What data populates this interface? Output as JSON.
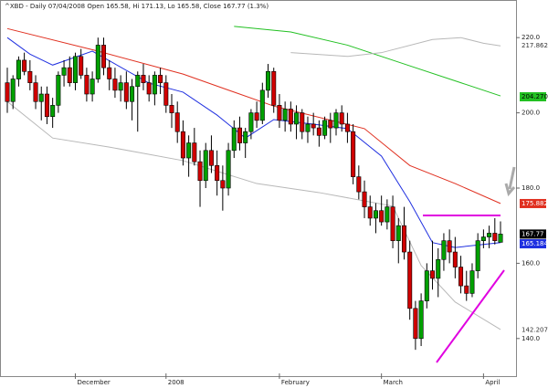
{
  "chart_data": {
    "type": "candlestick",
    "title": "^XBD - Daily 07/04/2008 Open 165.58, Hi 171.13, Lo 165.58, Close 167.77 (1.3%)",
    "ylim": [
      130,
      230
    ],
    "yticks": [
      {
        "value": 220,
        "label": "220.0"
      },
      {
        "value": 200,
        "label": "200.0"
      },
      {
        "value": 180,
        "label": "180.0"
      },
      {
        "value": 160,
        "label": "160.0"
      },
      {
        "value": 140,
        "label": "140.0"
      }
    ],
    "categories": [
      null,
      null,
      null,
      null,
      null,
      null,
      null,
      null,
      null,
      null,
      null,
      null,
      "December",
      null,
      null,
      null,
      null,
      null,
      null,
      null,
      null,
      null,
      null,
      null,
      null,
      null,
      null,
      null,
      "2008",
      null,
      null,
      null,
      null,
      null,
      null,
      null,
      null,
      null,
      null,
      null,
      null,
      null,
      null,
      null,
      null,
      null,
      null,
      null,
      "February",
      null,
      null,
      null,
      null,
      null,
      null,
      null,
      null,
      null,
      null,
      null,
      null,
      null,
      null,
      null,
      null,
      null,
      "March",
      null,
      null,
      null,
      null,
      null,
      null,
      null,
      null,
      null,
      null,
      null,
      null,
      null,
      null,
      null,
      null,
      null,
      "April",
      null,
      null,
      null
    ],
    "up_color": "#00a000",
    "down_color": "#d00000",
    "ohlc": [
      [
        208,
        212,
        200,
        203
      ],
      [
        203,
        210,
        201,
        209
      ],
      [
        209,
        215,
        207,
        214
      ],
      [
        214,
        216,
        210,
        211
      ],
      [
        211,
        214,
        206,
        208
      ],
      [
        208,
        210,
        201,
        203
      ],
      [
        203,
        207,
        198,
        205
      ],
      [
        205,
        207,
        197,
        199
      ],
      [
        199,
        204,
        196,
        202
      ],
      [
        202,
        211,
        200,
        210
      ],
      [
        210,
        214,
        207,
        212
      ],
      [
        212,
        215,
        207,
        208
      ],
      [
        208,
        216,
        206,
        215
      ],
      [
        215,
        217,
        209,
        210
      ],
      [
        210,
        212,
        203,
        205
      ],
      [
        205,
        211,
        203,
        209
      ],
      [
        209,
        220,
        208,
        218
      ],
      [
        218,
        220,
        210,
        212
      ],
      [
        212,
        214,
        206,
        209
      ],
      [
        209,
        212,
        204,
        206
      ],
      [
        206,
        210,
        203,
        208
      ],
      [
        208,
        211,
        201,
        203
      ],
      [
        203,
        209,
        198,
        207
      ],
      [
        207,
        211,
        195,
        210
      ],
      [
        210,
        213,
        206,
        208
      ],
      [
        208,
        210,
        203,
        205
      ],
      [
        205,
        211,
        202,
        210
      ],
      [
        210,
        212,
        205,
        208
      ],
      [
        208,
        210,
        200,
        202
      ],
      [
        202,
        205,
        196,
        200
      ],
      [
        200,
        203,
        192,
        195
      ],
      [
        195,
        198,
        186,
        188
      ],
      [
        188,
        194,
        183,
        192
      ],
      [
        192,
        196,
        186,
        187
      ],
      [
        187,
        190,
        175,
        182
      ],
      [
        182,
        192,
        180,
        190
      ],
      [
        190,
        194,
        184,
        186
      ],
      [
        186,
        190,
        178,
        182
      ],
      [
        182,
        186,
        174,
        180
      ],
      [
        180,
        192,
        178,
        190
      ],
      [
        190,
        198,
        188,
        196
      ],
      [
        196,
        199,
        190,
        192
      ],
      [
        192,
        196,
        188,
        195
      ],
      [
        195,
        201,
        193,
        200
      ],
      [
        200,
        203,
        196,
        198
      ],
      [
        198,
        208,
        197,
        206
      ],
      [
        206,
        213,
        204,
        211
      ],
      [
        211,
        212,
        200,
        202
      ],
      [
        202,
        205,
        196,
        198
      ],
      [
        198,
        203,
        195,
        201
      ],
      [
        201,
        203,
        195,
        197
      ],
      [
        197,
        202,
        193,
        200
      ],
      [
        200,
        201,
        193,
        195
      ],
      [
        195,
        199,
        192,
        197
      ],
      [
        197,
        200,
        194,
        196
      ],
      [
        196,
        198,
        191,
        194
      ],
      [
        194,
        199,
        193,
        198
      ],
      [
        198,
        200,
        192,
        196
      ],
      [
        196,
        201,
        194,
        200
      ],
      [
        200,
        202,
        195,
        197
      ],
      [
        197,
        200,
        192,
        195
      ],
      [
        195,
        197,
        181,
        183
      ],
      [
        183,
        186,
        177,
        179
      ],
      [
        179,
        182,
        172,
        175
      ],
      [
        175,
        178,
        170,
        172
      ],
      [
        172,
        176,
        168,
        174
      ],
      [
        174,
        178,
        170,
        171
      ],
      [
        171,
        177,
        169,
        175
      ],
      [
        175,
        178,
        164,
        166
      ],
      [
        166,
        172,
        160,
        170
      ],
      [
        170,
        175,
        161,
        163
      ],
      [
        163,
        166,
        145,
        148
      ],
      [
        148,
        150,
        137,
        140
      ],
      [
        140,
        152,
        138,
        150
      ],
      [
        150,
        160,
        148,
        158
      ],
      [
        158,
        166,
        153,
        156
      ],
      [
        156,
        164,
        151,
        161
      ],
      [
        161,
        168,
        158,
        166
      ],
      [
        166,
        169,
        160,
        163
      ],
      [
        163,
        167,
        156,
        159
      ],
      [
        159,
        162,
        152,
        154
      ],
      [
        154,
        158,
        150,
        152
      ],
      [
        152,
        160,
        151,
        158
      ],
      [
        158,
        168,
        156,
        166
      ],
      [
        166,
        169,
        164,
        167
      ],
      [
        167,
        170,
        164,
        168
      ],
      [
        168,
        172,
        165,
        166
      ],
      [
        165.58,
        171.13,
        165.58,
        167.77
      ]
    ],
    "lines": [
      {
        "color": "#22c022",
        "x": [
          40,
          50,
          60,
          70,
          80,
          87
        ],
        "values": [
          223,
          221.5,
          218,
          213,
          208,
          204.5
        ]
      },
      {
        "color": "#b8b8b8",
        "x": [
          50,
          60,
          66,
          75,
          80,
          84,
          87
        ],
        "values": [
          216,
          215,
          216,
          219.5,
          220,
          218.5,
          217.8
        ]
      },
      {
        "color": "#e03020",
        "x": [
          0,
          16,
          31,
          47,
          63,
          71,
          79,
          87
        ],
        "values": [
          222.4,
          216.4,
          210.3,
          201.8,
          195.8,
          186,
          181.2,
          175.9
        ]
      },
      {
        "color": "#2030e0",
        "x": [
          0,
          4,
          8,
          15,
          25,
          31,
          37,
          42,
          47,
          54,
          60,
          66,
          71,
          75,
          79,
          87
        ],
        "values": [
          220,
          215.6,
          212.7,
          216.4,
          207.9,
          205.5,
          199.4,
          193.3,
          198.2,
          197,
          195.8,
          188.5,
          176.4,
          165.5,
          164.2,
          165.5
        ]
      },
      {
        "color": "#b8b8b8",
        "x": [
          0,
          8,
          18,
          31,
          44,
          55,
          68,
          73,
          79,
          87
        ],
        "values": [
          203,
          193.3,
          190.9,
          187.3,
          181.2,
          178.8,
          175.2,
          159.4,
          149.7,
          142.4
        ]
      }
    ],
    "last_labels": [
      {
        "value": 217.862,
        "label": "217.862",
        "bg": "#ffffff",
        "fg": "#333333"
      },
      {
        "value": 204.27,
        "label": "204.270",
        "bg": "#22c022",
        "fg": "#000000"
      },
      {
        "value": 175.882,
        "label": "175.882",
        "bg": "#e03020",
        "fg": "#ffffff"
      },
      {
        "value": 167.77,
        "label": "167.77",
        "bg": "#000000",
        "fg": "#ffffff"
      },
      {
        "value": 165.184,
        "label": "165.184",
        "bg": "#2030e0",
        "fg": "#ffffff"
      },
      {
        "value": 142.207,
        "label": "142.207",
        "bg": "#ffffff",
        "fg": "#333333"
      }
    ]
  }
}
